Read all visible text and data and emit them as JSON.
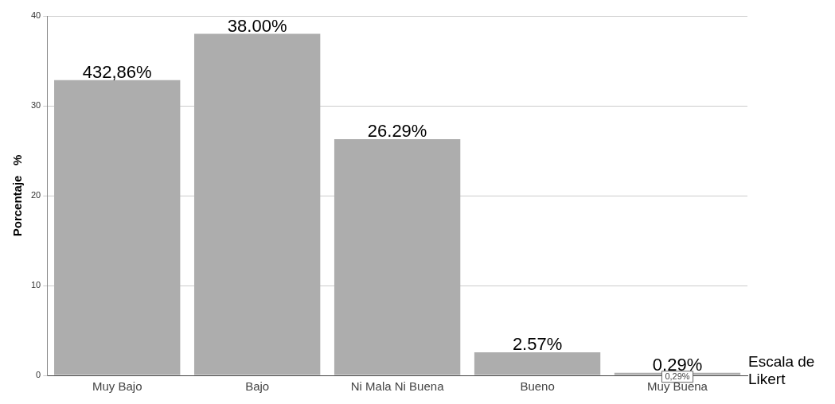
{
  "chart_data": {
    "type": "bar",
    "ylabel": "Porcentaje   %",
    "xlabel": "Escala de Likert",
    "categories": [
      "Muy Bajo",
      "Bajo",
      "Ni Mala Ni Buena",
      "Bueno",
      "Muy Buena"
    ],
    "values": [
      32.86,
      38.0,
      26.29,
      2.57,
      0.29
    ],
    "value_labels": [
      null,
      "38.00%",
      "26.29%",
      "2.57%",
      "0.29%"
    ],
    "color": "#adadad",
    "annotations": [
      {
        "text": "432,86%",
        "x": "Muy Bajo",
        "y": 32.86
      },
      {
        "text": "0,29%",
        "x": "Muy Buena",
        "y": 0.29
      }
    ],
    "ylim": [
      0,
      40
    ],
    "yticks": [
      0,
      10,
      20,
      30,
      40
    ],
    "grid": "y"
  }
}
